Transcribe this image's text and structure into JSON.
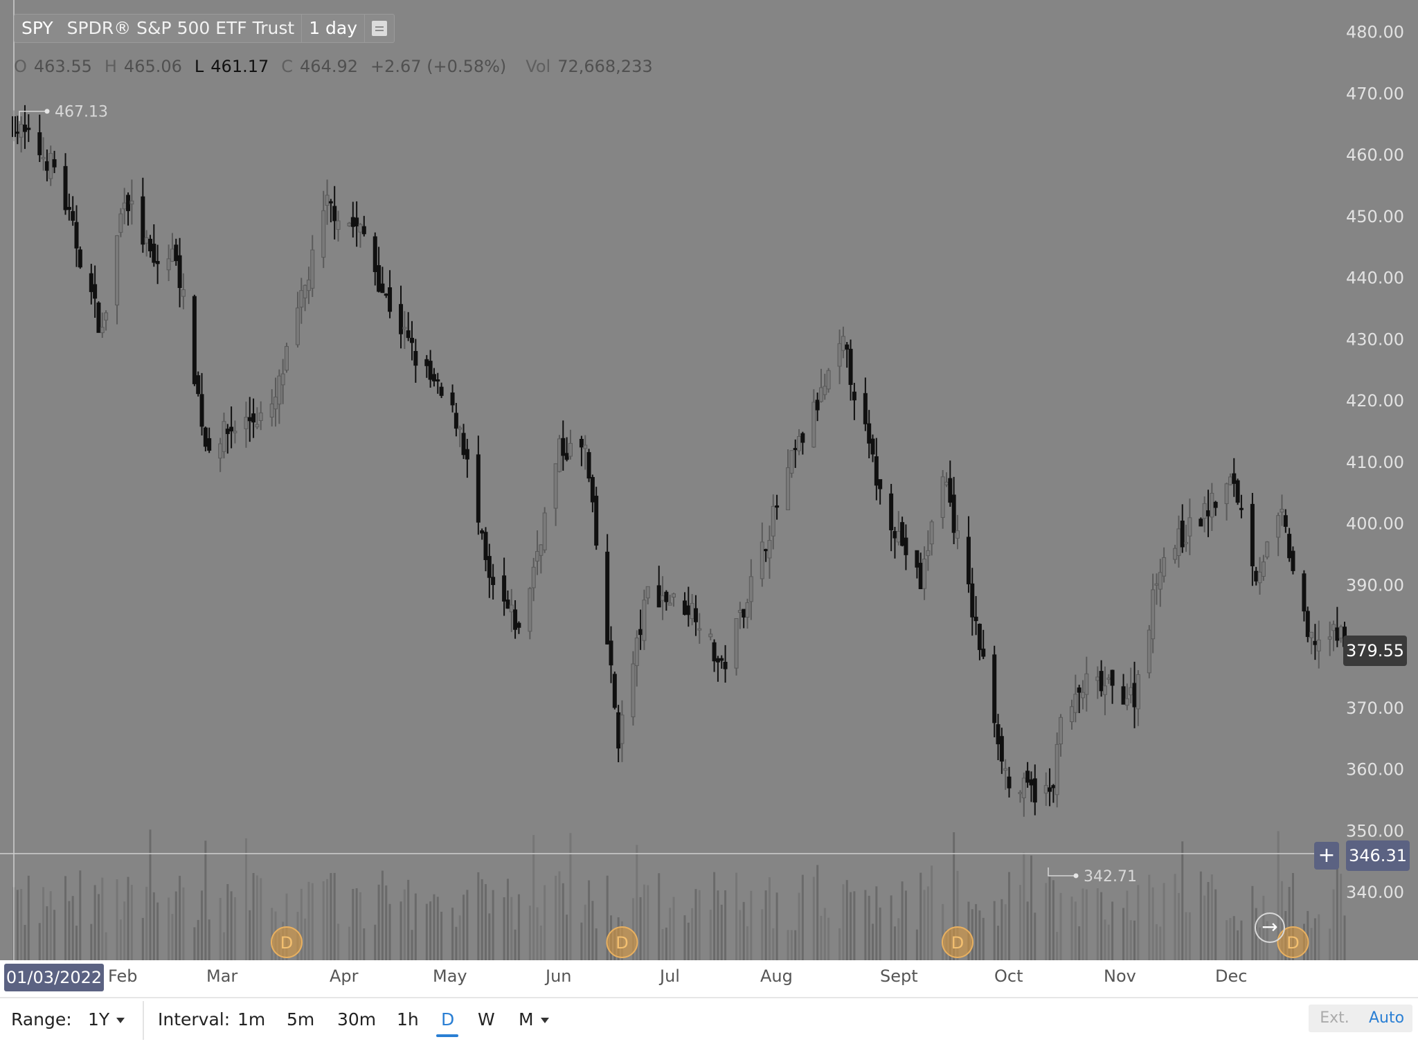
{
  "header": {
    "symbol": "SPY",
    "name": "SPDR® S&P 500 ETF Trust",
    "interval_label": "1 day"
  },
  "ohlc": {
    "o_label": "O",
    "o": "463.55",
    "h_label": "H",
    "h": "465.06",
    "l_label": "L",
    "l": "461.17",
    "c_label": "C",
    "c": "464.92",
    "change": "+2.67 (+0.58%)",
    "vol_label": "Vol",
    "vol": "72,668,233"
  },
  "crosshair": {
    "date_label": "01/03/2022",
    "price_label": "346.31",
    "plus_icon": "plus-icon"
  },
  "last_price": "379.55",
  "annotations": {
    "high": "467.13",
    "low": "342.71"
  },
  "x_axis_months": [
    "Feb",
    "Mar",
    "Apr",
    "May",
    "Jun",
    "Jul",
    "Aug",
    "Sept",
    "Oct",
    "Nov",
    "Dec"
  ],
  "toolbar": {
    "range_label": "Range:",
    "range_value": "1Y",
    "interval_label": "Interval:",
    "intervals": [
      "1m",
      "5m",
      "30m",
      "1h",
      "D",
      "W",
      "M"
    ],
    "active_interval": "D",
    "ext_label": "Ext.",
    "auto_label": "Auto"
  },
  "colors": {
    "plot_bg": "#858585",
    "candle_down": "#101010",
    "candle_up": "#5a5a5a",
    "volume_bar": "#6a6a6a",
    "dividend_marker": "#e09a3a",
    "accent": "#2a7fd4",
    "tag_bg": "#5b6282",
    "last_price_bg": "#3a3a3a"
  },
  "chart_data": {
    "type": "candlestick",
    "title": "SPY",
    "ylim": [
      330,
      485
    ],
    "y_ticks": [
      480.0,
      470.0,
      460.0,
      450.0,
      440.0,
      430.0,
      420.0,
      410.0,
      400.0,
      390.0,
      380.0,
      370.0,
      360.0,
      350.0,
      340.0
    ],
    "y_tick_labels": [
      "480.00",
      "470.00",
      "460.00",
      "450.00",
      "440.00",
      "430.00",
      "420.00",
      "410.00",
      "400.00",
      "390.00",
      "380.00",
      "370.00",
      "360.00",
      "350.00",
      "340.00"
    ],
    "x_labels": [
      "Feb",
      "Mar",
      "Apr",
      "May",
      "Jun",
      "Jul",
      "Aug",
      "Sept",
      "Oct",
      "Nov",
      "Dec"
    ],
    "close_path": [
      [
        "2022-01-03",
        465
      ],
      [
        "2022-01-14",
        458
      ],
      [
        "2022-01-27",
        431
      ],
      [
        "2022-02-02",
        454
      ],
      [
        "2022-02-10",
        442
      ],
      [
        "2022-02-16",
        444
      ],
      [
        "2022-02-24",
        413
      ],
      [
        "2022-03-08",
        417
      ],
      [
        "2022-03-14",
        418
      ],
      [
        "2022-03-29",
        452
      ],
      [
        "2022-04-08",
        447
      ],
      [
        "2022-04-13",
        438
      ],
      [
        "2022-04-22",
        427
      ],
      [
        "2022-05-04",
        416
      ],
      [
        "2022-05-12",
        390
      ],
      [
        "2022-05-19",
        384
      ],
      [
        "2022-05-20",
        382
      ],
      [
        "2022-05-31",
        412
      ],
      [
        "2022-06-07",
        412
      ],
      [
        "2022-06-16",
        365
      ],
      [
        "2022-06-24",
        389
      ],
      [
        "2022-07-07",
        386
      ],
      [
        "2022-07-14",
        376
      ],
      [
        "2022-08-02",
        410
      ],
      [
        "2022-08-16",
        429
      ],
      [
        "2022-08-26",
        405
      ],
      [
        "2022-09-06",
        390
      ],
      [
        "2022-09-12",
        409
      ],
      [
        "2022-09-30",
        357
      ],
      [
        "2022-10-12",
        356
      ],
      [
        "2022-10-13",
        366
      ],
      [
        "2022-10-21",
        374
      ],
      [
        "2022-11-03",
        372
      ],
      [
        "2022-11-10",
        394
      ],
      [
        "2022-11-30",
        407
      ],
      [
        "2022-12-06",
        392
      ],
      [
        "2022-12-13",
        401
      ],
      [
        "2022-12-20",
        381
      ],
      [
        "2022-12-30",
        382
      ]
    ],
    "annotations": [
      {
        "label": "467.13",
        "value": 467.13,
        "kind": "period-high"
      },
      {
        "label": "342.71",
        "value": 342.71,
        "kind": "period-low"
      }
    ],
    "last_price": 379.55,
    "crosshair_price": 346.31,
    "dividend_markers": [
      "Mar",
      "Jun",
      "Sept",
      "Dec"
    ],
    "grid": false
  }
}
